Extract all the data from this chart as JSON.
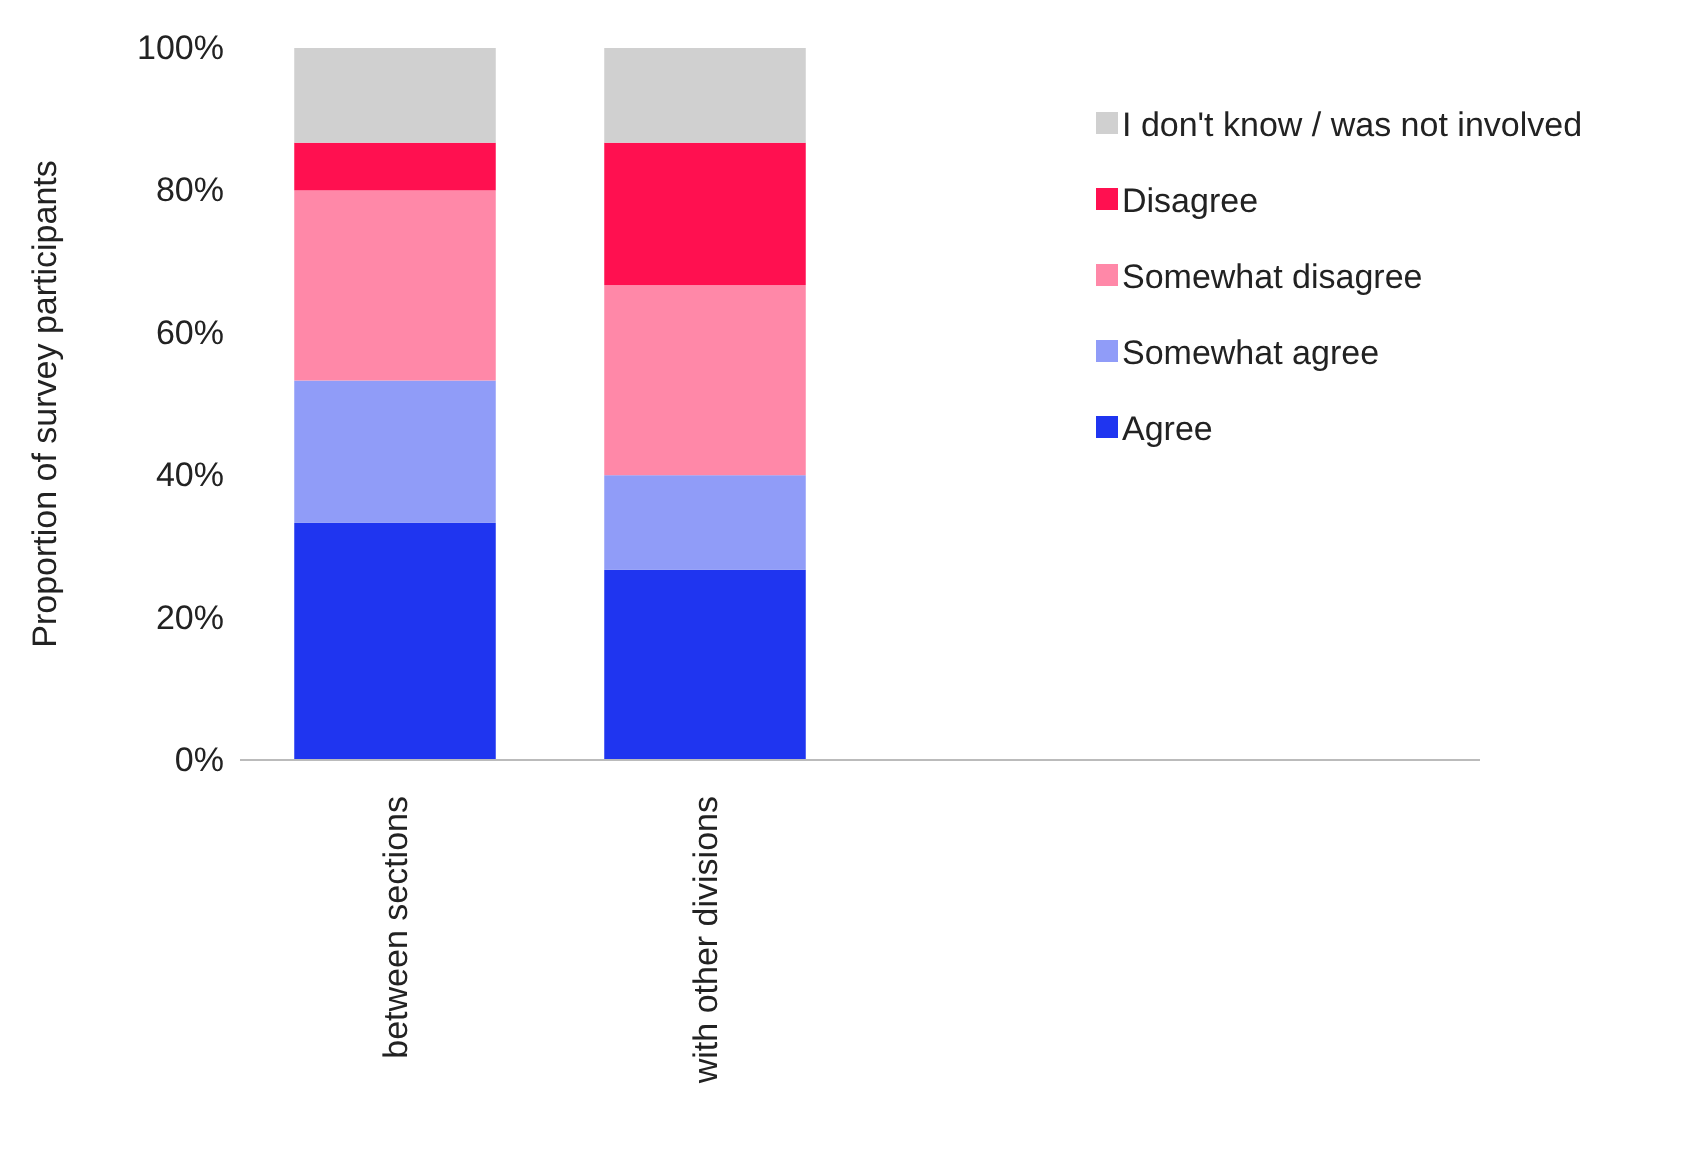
{
  "chart_data": {
    "type": "bar",
    "stacked": true,
    "ylabel": "Proportion of survey participants",
    "categories": [
      "between sections",
      "with other divisions"
    ],
    "series": [
      {
        "name": "Agree",
        "color": "#1f35f0",
        "values": [
          33.3,
          26.7
        ]
      },
      {
        "name": "Somewhat agree",
        "color": "#909cf8",
        "values": [
          20,
          13.3
        ]
      },
      {
        "name": "Somewhat disagree",
        "color": "#ff88a8",
        "values": [
          26.7,
          26.7
        ]
      },
      {
        "name": "Disagree",
        "color": "#ff1050",
        "values": [
          6.7,
          20
        ]
      },
      {
        "name": "I don't know / was not involved",
        "color": "#d0d0d0",
        "values": [
          13.3,
          13.3
        ]
      }
    ],
    "ylim": [
      0,
      100
    ],
    "yticks": [
      {
        "value": 0,
        "label": "0%"
      },
      {
        "value": 20,
        "label": "20%"
      },
      {
        "value": 40,
        "label": "40%"
      },
      {
        "value": 60,
        "label": "60%"
      },
      {
        "value": 80,
        "label": "80%"
      },
      {
        "value": 100,
        "label": "100%"
      }
    ],
    "grid": false,
    "legend": "right"
  }
}
